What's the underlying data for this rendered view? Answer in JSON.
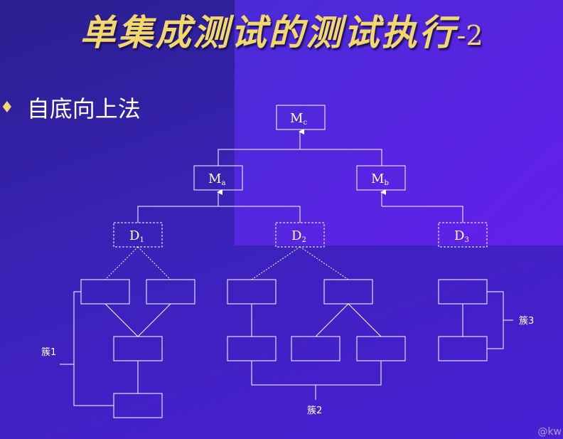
{
  "title": {
    "main": "单集成测试的测试执行",
    "suffix": "-2"
  },
  "bullet": {
    "icon": "diamond-bullet-icon",
    "text": "自底向上法"
  },
  "nodes": {
    "mc": {
      "letter": "M",
      "sub": "c"
    },
    "ma": {
      "letter": "M",
      "sub": "a"
    },
    "mb": {
      "letter": "M",
      "sub": "b"
    },
    "d1": {
      "letter": "D",
      "sub": "1"
    },
    "d2": {
      "letter": "D",
      "sub": "2"
    },
    "d3": {
      "letter": "D",
      "sub": "3"
    }
  },
  "clusters": {
    "c1": "簇1",
    "c2": "簇2",
    "c3": "簇3"
  },
  "watermark": "@kw",
  "colors": {
    "background": "#3a22b8",
    "title": "#f2d76a",
    "lines": "#ffffff"
  }
}
